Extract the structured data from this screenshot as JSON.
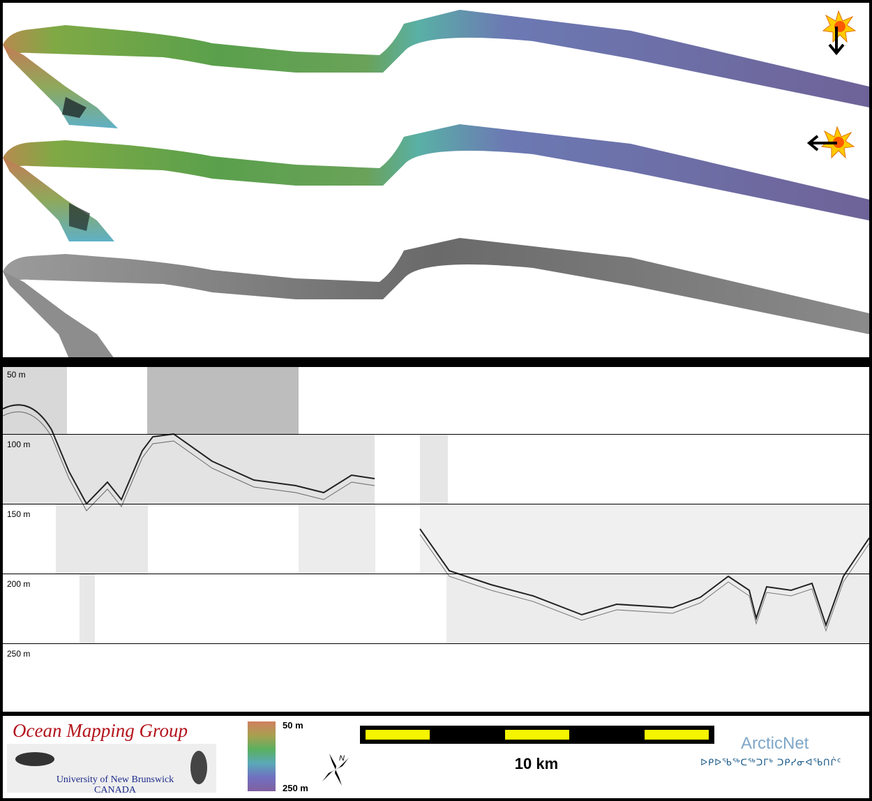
{
  "profile": {
    "depth_labels": [
      "50 m",
      "100 m",
      "150 m",
      "200 m",
      "250 m"
    ]
  },
  "footer": {
    "logo_title": "Ocean Mapping Group",
    "logo_university": "University of New Brunswick",
    "logo_country": "CANADA",
    "colorbar": {
      "top_label": "50 m",
      "bottom_label": "250 m"
    },
    "north_label": "N",
    "scale_label": "10 km",
    "arcticnet_title": "ArcticNet",
    "arcticnet_syllabics": "ᐅᑭᐅᖃᖅᑕᖅᑐᒥᒃ ᑐᑭᓯᓂᐊᖃᑎᒌᑦ"
  },
  "colors": {
    "frame": "#000000",
    "scale_yellow": "#f5f500",
    "ogm_red": "#b3121b",
    "unb_blue": "#1c2a8a",
    "arcticnet_blue": "#7fa7c9"
  },
  "icons": [
    "sun-icon",
    "arrow-down-icon",
    "arrow-left-icon",
    "north-arrow-icon"
  ]
}
